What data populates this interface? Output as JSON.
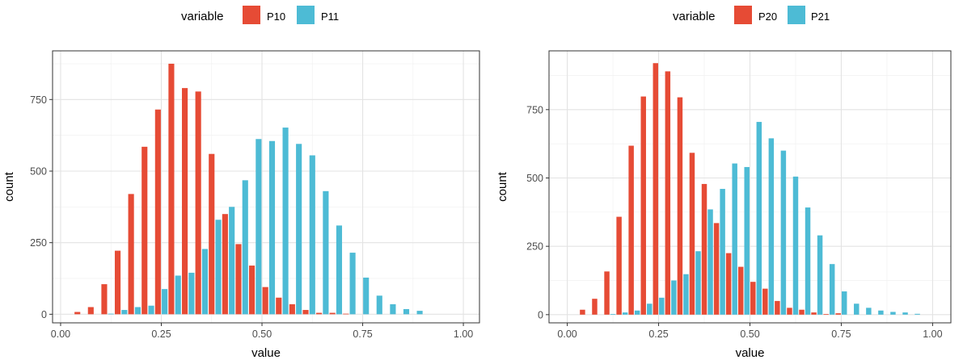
{
  "chart_data": [
    {
      "type": "bar",
      "xlabel": "value",
      "ylabel": "count",
      "xlim": [
        -0.02,
        1.04
      ],
      "ylim": [
        -30,
        920
      ],
      "xticks": [
        "0.00",
        "0.25",
        "0.50",
        "0.75",
        "1.00"
      ],
      "xtick_values": [
        0,
        0.25,
        0.5,
        0.75,
        1.0
      ],
      "yticks": [
        "0",
        "250",
        "500",
        "750"
      ],
      "ytick_values": [
        0,
        250,
        500,
        750
      ],
      "legend_title": "variable",
      "legend_position": "top",
      "grid": true,
      "bins": [
        0.05,
        0.0833,
        0.1167,
        0.15,
        0.1833,
        0.2167,
        0.25,
        0.2833,
        0.3167,
        0.35,
        0.3833,
        0.4167,
        0.45,
        0.4833,
        0.5167,
        0.55,
        0.5833,
        0.6167,
        0.65,
        0.6833,
        0.7167,
        0.75,
        0.7833,
        0.8167,
        0.85,
        0.8833
      ],
      "series": [
        {
          "name": "P10",
          "color": "#E64B35",
          "values": [
            8,
            25,
            105,
            222,
            420,
            585,
            715,
            875,
            790,
            778,
            560,
            350,
            245,
            170,
            95,
            58,
            35,
            15,
            5,
            5,
            2,
            0,
            0,
            0,
            0,
            0
          ]
        },
        {
          "name": "P11",
          "color": "#4DBBD5",
          "values": [
            0,
            0,
            2,
            15,
            25,
            30,
            88,
            135,
            145,
            228,
            330,
            375,
            468,
            612,
            605,
            652,
            595,
            555,
            430,
            310,
            215,
            128,
            65,
            35,
            18,
            12
          ]
        }
      ]
    },
    {
      "type": "bar",
      "xlabel": "value",
      "ylabel": "count",
      "xlim": [
        -0.05,
        1.05
      ],
      "ylim": [
        -30,
        965
      ],
      "xticks": [
        "0.00",
        "0.25",
        "0.50",
        "0.75",
        "1.00"
      ],
      "xtick_values": [
        0,
        0.25,
        0.5,
        0.75,
        1.0
      ],
      "yticks": [
        "0",
        "250",
        "500",
        "750"
      ],
      "ytick_values": [
        0,
        250,
        500,
        750
      ],
      "legend_title": "variable",
      "legend_position": "top",
      "grid": true,
      "bins": [
        0.05,
        0.0833,
        0.1167,
        0.15,
        0.1833,
        0.2167,
        0.25,
        0.2833,
        0.3167,
        0.35,
        0.3833,
        0.4167,
        0.45,
        0.4833,
        0.5167,
        0.55,
        0.5833,
        0.6167,
        0.65,
        0.6833,
        0.7167,
        0.75,
        0.7833,
        0.8167,
        0.85,
        0.8833,
        0.9167,
        0.95
      ],
      "series": [
        {
          "name": "P20",
          "color": "#E64B35",
          "values": [
            18,
            58,
            158,
            358,
            618,
            798,
            920,
            890,
            795,
            592,
            478,
            335,
            225,
            175,
            120,
            95,
            50,
            25,
            18,
            8,
            2,
            5,
            0,
            0,
            0,
            0,
            0,
            0
          ]
        },
        {
          "name": "P21",
          "color": "#4DBBD5",
          "values": [
            0,
            0,
            2,
            8,
            15,
            40,
            62,
            125,
            148,
            232,
            385,
            460,
            553,
            540,
            705,
            645,
            600,
            505,
            392,
            290,
            185,
            85,
            40,
            25,
            15,
            10,
            8,
            3
          ]
        }
      ]
    }
  ]
}
